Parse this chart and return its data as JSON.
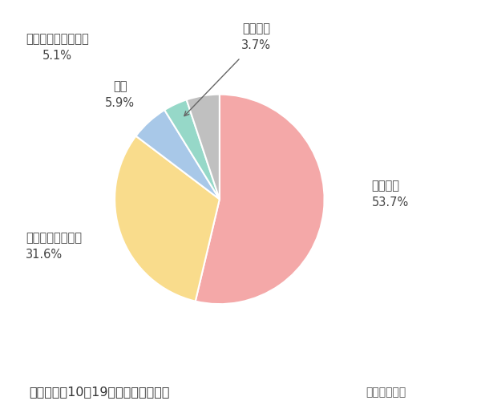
{
  "slices": [
    {
      "label_line1": "良かった",
      "label_line2": "53.7%",
      "value": 53.7,
      "color": "#F4A8A8"
    },
    {
      "label_line1": "まあまあ良かった",
      "label_line2": "31.6%",
      "value": 31.6,
      "color": "#F9DC8C"
    },
    {
      "label_line1": "普通",
      "label_line2": "5.9%",
      "value": 5.9,
      "color": "#A8C8E8"
    },
    {
      "label_line1": "悪かった",
      "label_line2": "3.7%",
      "value": 3.7,
      "color": "#96D8C8"
    },
    {
      "label_line1": "あまり良くなかった",
      "label_line2": "5.1%",
      "value": 5.1,
      "color": "#C0C0C0"
    }
  ],
  "bg_color": "#FFFFFF",
  "footer_bg": "#D8D8F0",
  "footer_text": "》無料のみ10～19分》満足度の内訳",
  "footer_text2": "《無料のみ10～19分》満足度の内訳",
  "footer_main": "【無料のみ10～19分】満足度の内訳",
  "footer_sub": "占いセレクト",
  "startangle": 90
}
